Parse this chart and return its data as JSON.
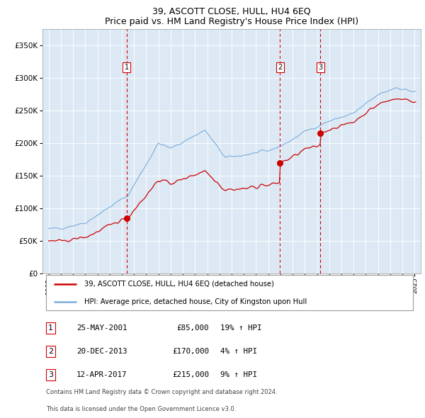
{
  "title": "39, ASCOTT CLOSE, HULL, HU4 6EQ",
  "subtitle": "Price paid vs. HM Land Registry's House Price Index (HPI)",
  "bg_color": "#dce9f5",
  "red_line_color": "#cc0000",
  "blue_line_color": "#7aacdc",
  "sale_marker_color": "#cc0000",
  "vline_color": "#cc0000",
  "transactions": [
    {
      "num": 1,
      "date_num": 2001.39,
      "price": 85000,
      "label": "25-MAY-2001",
      "pct": "19%",
      "dir": "↑"
    },
    {
      "num": 2,
      "date_num": 2013.97,
      "price": 170000,
      "label": "20-DEC-2013",
      "pct": "4%",
      "dir": "↑"
    },
    {
      "num": 3,
      "date_num": 2017.28,
      "price": 215000,
      "label": "12-APR-2017",
      "pct": "9%",
      "dir": "↑"
    }
  ],
  "legend_line1": "39, ASCOTT CLOSE, HULL, HU4 6EQ (detached house)",
  "legend_line2": "HPI: Average price, detached house, City of Kingston upon Hull",
  "footer1": "Contains HM Land Registry data © Crown copyright and database right 2024.",
  "footer2": "This data is licensed under the Open Government Licence v3.0.",
  "ylim_max": 375000,
  "yticks": [
    0,
    50000,
    100000,
    150000,
    200000,
    250000,
    300000,
    350000
  ],
  "xlim_min": 1994.5,
  "xlim_max": 2025.5
}
